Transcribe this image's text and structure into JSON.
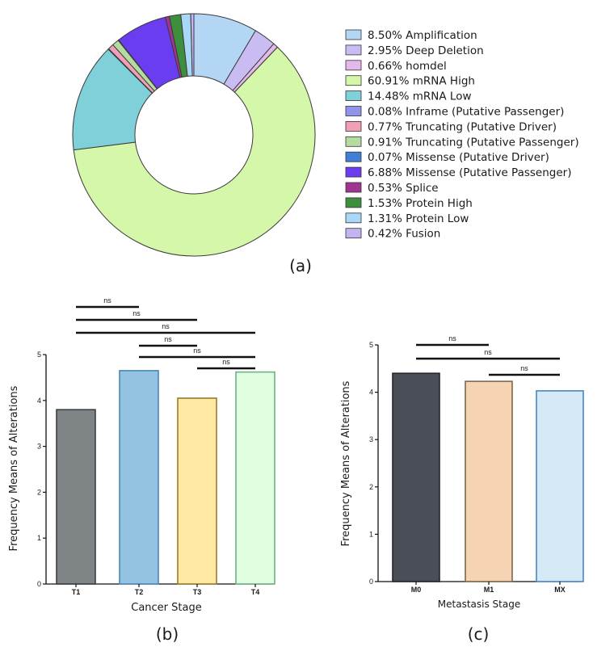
{
  "chart_data": [
    {
      "type": "pie",
      "panel_label": "(a)",
      "donut": true,
      "legend_position": "right",
      "slices": [
        {
          "label": "Amplification",
          "percent_text": "8.50%",
          "value": 8.5,
          "color": "#b3d6f5"
        },
        {
          "label": "Deep Deletion",
          "percent_text": "2.95%",
          "value": 2.95,
          "color": "#c8bcf2"
        },
        {
          "label": "homdel",
          "percent_text": "0.66%",
          "value": 0.66,
          "color": "#e3b8ea"
        },
        {
          "label": "mRNA High",
          "percent_text": "60.91%",
          "value": 60.91,
          "color": "#d5f7a9"
        },
        {
          "label": "mRNA Low",
          "percent_text": "14.48%",
          "value": 14.48,
          "color": "#7fd0d8"
        },
        {
          "label": "Inframe (Putative Passenger)",
          "percent_text": "0.08%",
          "value": 0.08,
          "color": "#8f94ea"
        },
        {
          "label": "Truncating (Putative Driver)",
          "percent_text": "0.77%",
          "value": 0.77,
          "color": "#ef9fb6"
        },
        {
          "label": "Truncating (Putative Passenger)",
          "percent_text": "0.91%",
          "value": 0.91,
          "color": "#b5dca0"
        },
        {
          "label": "Missense (Putative Driver)",
          "percent_text": "0.07%",
          "value": 0.07,
          "color": "#3f7fd6"
        },
        {
          "label": "Missense (Putative Passenger)",
          "percent_text": "6.88%",
          "value": 6.88,
          "color": "#6a3df0"
        },
        {
          "label": "Splice",
          "percent_text": "0.53%",
          "value": 0.53,
          "color": "#a0358f"
        },
        {
          "label": "Protein High",
          "percent_text": "1.53%",
          "value": 1.53,
          "color": "#3d8f3d"
        },
        {
          "label": "Protein Low",
          "percent_text": "1.31%",
          "value": 1.31,
          "color": "#a9d8f6"
        },
        {
          "label": "Fusion",
          "percent_text": "0.42%",
          "value": 0.42,
          "color": "#c3b4ef"
        }
      ]
    },
    {
      "type": "bar",
      "panel_label": "(b)",
      "xlabel": "Cancer Stage",
      "ylabel": "Frequency Means of  Alterations",
      "ylim": [
        0,
        5
      ],
      "yticks": [
        0,
        1,
        2,
        3,
        4,
        5
      ],
      "categories": [
        "T1",
        "T2",
        "T3",
        "T4"
      ],
      "values": [
        3.8,
        4.65,
        4.05,
        4.62
      ],
      "fills": [
        "#7f8487",
        "#94c3e1",
        "#ffeaa4",
        "#e0ffe0"
      ],
      "strokes": [
        "#3a3f44",
        "#4a87b5",
        "#9a7a2a",
        "#6fae88"
      ],
      "comparisons": [
        {
          "from": 0,
          "to": 1,
          "label": "ns"
        },
        {
          "from": 0,
          "to": 2,
          "label": "ns"
        },
        {
          "from": 0,
          "to": 3,
          "label": "ns"
        },
        {
          "from": 1,
          "to": 2,
          "label": "ns"
        },
        {
          "from": 1,
          "to": 3,
          "label": "ns"
        },
        {
          "from": 2,
          "to": 3,
          "label": "ns"
        }
      ]
    },
    {
      "type": "bar",
      "panel_label": "(c)",
      "xlabel": "Metastasis Stage",
      "ylabel": "Frequency Means of  Alterations",
      "ylim": [
        0,
        5
      ],
      "yticks": [
        0,
        1,
        2,
        3,
        4,
        5
      ],
      "categories": [
        "M0",
        "M1",
        "MX"
      ],
      "values": [
        4.4,
        4.23,
        4.03
      ],
      "fills": [
        "#4a4f57",
        "#f6d3b2",
        "#d6e9f6"
      ],
      "strokes": [
        "#22262b",
        "#7a6a4a",
        "#4a87c5"
      ],
      "comparisons": [
        {
          "from": 0,
          "to": 1,
          "label": "ns"
        },
        {
          "from": 0,
          "to": 2,
          "label": "ns"
        },
        {
          "from": 1,
          "to": 2,
          "label": "ns"
        }
      ]
    }
  ]
}
